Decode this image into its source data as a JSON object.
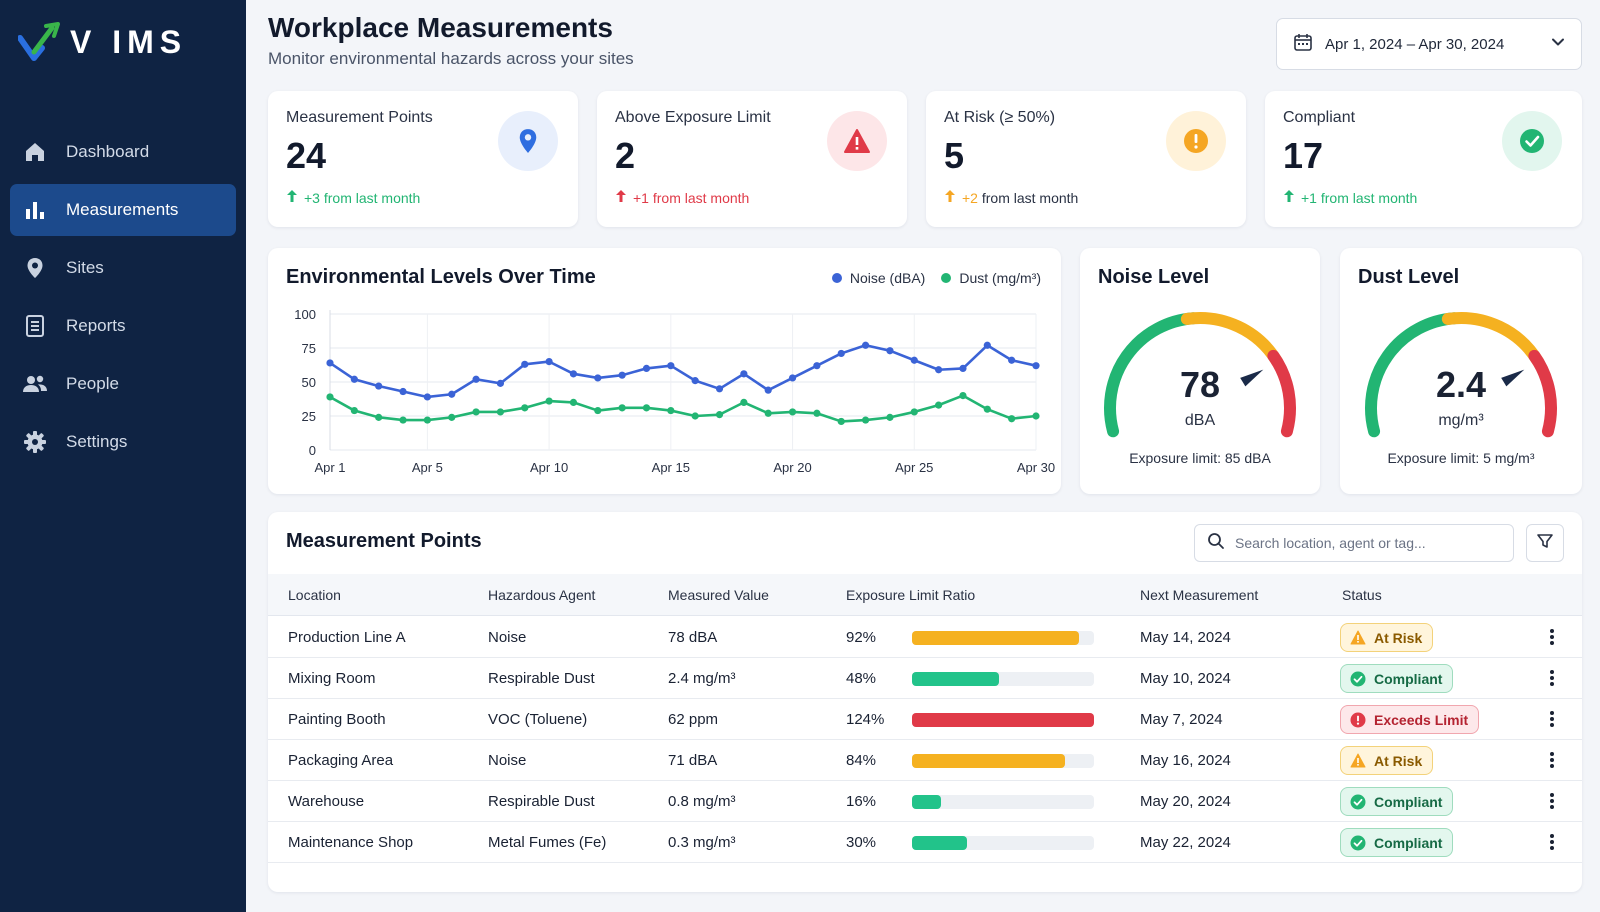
{
  "app": {
    "logo_text": "V IMS"
  },
  "sidebar": {
    "items": [
      {
        "label": "Dashboard",
        "icon": "home-icon",
        "active": false
      },
      {
        "label": "Measurements",
        "icon": "bar-chart-icon",
        "active": true
      },
      {
        "label": "Sites",
        "icon": "map-pin-icon",
        "active": false
      },
      {
        "label": "Reports",
        "icon": "document-icon",
        "active": false
      },
      {
        "label": "People",
        "icon": "people-icon",
        "active": false
      },
      {
        "label": "Settings",
        "icon": "gear-icon",
        "active": false
      }
    ]
  },
  "header": {
    "title": "Workplace Measurements",
    "subtitle": "Monitor environmental hazards across your sites",
    "date_range": "Apr 1, 2024 – Apr 30, 2024"
  },
  "kpis": [
    {
      "label": "Measurement Points",
      "value": "24",
      "delta_value": "+3",
      "delta_text": "from last month",
      "color": "#22b573",
      "icon": "map-pin-icon"
    },
    {
      "label": "Above Exposure Limit",
      "value": "2",
      "delta_value": "+1",
      "delta_text": "from last month",
      "color": "#e03a48",
      "icon": "warning-triangle-icon"
    },
    {
      "label": "At Risk (≥ 50%)",
      "value": "5",
      "delta_value": "+2",
      "delta_text": "from last month",
      "color": "#f5a623",
      "icon": "alert-circle-icon"
    },
    {
      "label": "Compliant",
      "value": "17",
      "delta_value": "+1",
      "delta_text": "from last month",
      "color": "#22b573",
      "icon": "check-circle-icon"
    }
  ],
  "chart_data": {
    "type": "line",
    "title": "Environmental Levels Over Time",
    "x": [
      1,
      2,
      3,
      4,
      5,
      6,
      7,
      8,
      9,
      10,
      11,
      12,
      13,
      14,
      15,
      16,
      17,
      18,
      19,
      20,
      21,
      22,
      23,
      24,
      25,
      26,
      27,
      28,
      29,
      30
    ],
    "x_tick_labels": [
      "Apr 1",
      "Apr 5",
      "Apr 10",
      "Apr 15",
      "Apr 20",
      "Apr 25",
      "Apr 30"
    ],
    "x_tick_values": [
      1,
      5,
      10,
      15,
      20,
      25,
      30
    ],
    "y_ticks": [
      0,
      25,
      50,
      75,
      100
    ],
    "ylim": [
      0,
      100
    ],
    "grid": true,
    "legend_position": "top-right",
    "series": [
      {
        "name": "Noise (dBA)",
        "color": "#3b63d6",
        "values": [
          64,
          52,
          47,
          43,
          39,
          41,
          52,
          49,
          63,
          65,
          56,
          53,
          55,
          60,
          62,
          51,
          45,
          56,
          44,
          53,
          62,
          71,
          77,
          73,
          66,
          59,
          60,
          77,
          66,
          62
        ]
      },
      {
        "name": "Dust (mg/m³)",
        "color": "#22b573",
        "values": [
          39,
          29,
          24,
          22,
          22,
          24,
          28,
          28,
          31,
          36,
          35,
          29,
          31,
          31,
          29,
          25,
          26,
          35,
          27,
          28,
          27,
          21,
          22,
          24,
          28,
          33,
          40,
          30,
          23,
          25
        ]
      }
    ]
  },
  "gauges": [
    {
      "title": "Noise Level",
      "value": "78",
      "unit": "dBA",
      "limit_text": "Exposure limit: 85 dBA",
      "fraction": 0.78
    },
    {
      "title": "Dust Level",
      "value": "2.4",
      "unit": "mg/m³",
      "limit_text": "Exposure limit: 5 mg/m³",
      "fraction": 0.78
    }
  ],
  "table": {
    "title": "Measurement Points",
    "search_placeholder": "Search location, agent or tag...",
    "columns": [
      "Location",
      "Hazardous Agent",
      "Measured Value",
      "Exposure Limit Ratio",
      "Next Measurement",
      "Status"
    ],
    "rows": [
      {
        "location": "Production Line A",
        "agent": "Noise",
        "value": "78 dBA",
        "ratio_text": "92%",
        "ratio": 0.92,
        "bar_color": "#f5b120",
        "next": "May 14, 2024",
        "status": "At Risk",
        "status_type": "risk"
      },
      {
        "location": "Mixing Room",
        "agent": "Respirable Dust",
        "value": "2.4 mg/m³",
        "ratio_text": "48%",
        "ratio": 0.48,
        "bar_color": "#22c38a",
        "next": "May 10, 2024",
        "status": "Compliant",
        "status_type": "ok"
      },
      {
        "location": "Painting Booth",
        "agent": "VOC (Toluene)",
        "value": "62 ppm",
        "ratio_text": "124%",
        "ratio": 1.0,
        "bar_color": "#e03a48",
        "next": "May 7, 2024",
        "status": "Exceeds Limit",
        "status_type": "bad"
      },
      {
        "location": "Packaging Area",
        "agent": "Noise",
        "value": "71 dBA",
        "ratio_text": "84%",
        "ratio": 0.84,
        "bar_color": "#f5b120",
        "next": "May 16, 2024",
        "status": "At Risk",
        "status_type": "risk"
      },
      {
        "location": "Warehouse",
        "agent": "Respirable Dust",
        "value": "0.8 mg/m³",
        "ratio_text": "16%",
        "ratio": 0.16,
        "bar_color": "#22c38a",
        "next": "May 20, 2024",
        "status": "Compliant",
        "status_type": "ok"
      },
      {
        "location": "Maintenance Shop",
        "agent": "Metal Fumes (Fe)",
        "value": "0.3 mg/m³",
        "ratio_text": "30%",
        "ratio": 0.3,
        "bar_color": "#22c38a",
        "next": "May 22, 2024",
        "status": "Compliant",
        "status_type": "ok"
      }
    ]
  }
}
